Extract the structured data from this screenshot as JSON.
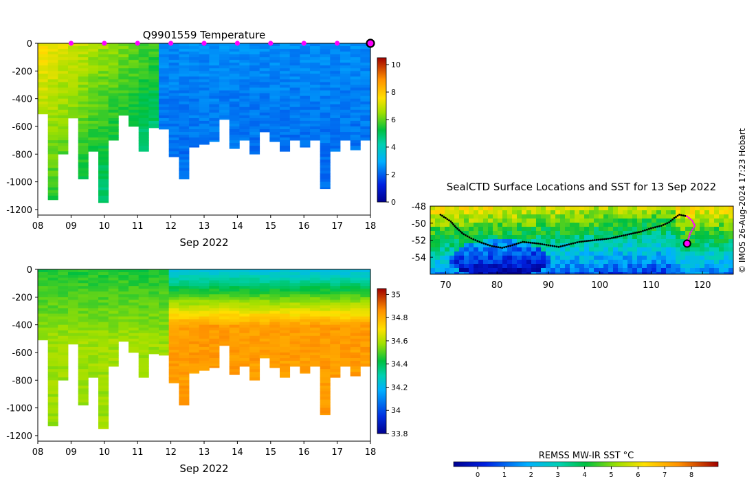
{
  "chart_data": [
    {
      "type": "heatmap",
      "title": "Q9901559  Temperature",
      "variable": "temperature",
      "x_ticks": [
        "08",
        "09",
        "10",
        "11",
        "12",
        "13",
        "14",
        "15",
        "16",
        "17",
        "18"
      ],
      "x_caption": "Sep 2022",
      "y_ticks": [
        "0",
        "-200",
        "-400",
        "-600",
        "-800",
        "-1000",
        "-1200"
      ],
      "ylim": [
        -1240,
        0
      ],
      "xlim": [
        "2022-09-08",
        "2022-09-18"
      ],
      "colorbar": {
        "ticks": [
          "0",
          "2",
          "4",
          "6",
          "8",
          "10"
        ],
        "range": [
          0,
          10.5
        ]
      },
      "profile_markers": [
        "2022-09-09",
        "2022-09-10",
        "2022-09-11",
        "2022-09-12",
        "2022-09-13",
        "2022-09-14",
        "2022-09-15",
        "2022-09-16",
        "2022-09-17"
      ],
      "latest_marker": "2022-09-18",
      "marker_color": "#ff00ff",
      "approximate_profile_depths_m": [
        -510,
        -1130,
        -800,
        -540,
        -980,
        -780,
        -1150,
        -700,
        -520,
        -600,
        -780,
        -610,
        -620,
        -820,
        -980,
        -750,
        -730,
        -710,
        -550,
        -760,
        -700,
        -800,
        -640,
        -710,
        -780,
        -700,
        -750,
        -700,
        -1050,
        -780,
        -700,
        -770,
        -700
      ]
    },
    {
      "type": "heatmap",
      "title": "",
      "variable": "salinity",
      "x_ticks": [
        "08",
        "09",
        "10",
        "11",
        "12",
        "13",
        "14",
        "15",
        "16",
        "17",
        "18"
      ],
      "x_caption": "Sep 2022",
      "y_ticks": [
        "0",
        "-200",
        "-400",
        "-600",
        "-800",
        "-1000",
        "-1200"
      ],
      "ylim": [
        -1240,
        0
      ],
      "xlim": [
        "2022-09-08",
        "2022-09-18"
      ],
      "colorbar": {
        "ticks": [
          "33.8",
          "34",
          "34.2",
          "34.4",
          "34.6",
          "34.8",
          "35"
        ],
        "range": [
          33.8,
          35.05
        ]
      }
    },
    {
      "type": "heatmap",
      "title": "SealCTD Surface Locations and SST for 13 Sep 2022",
      "variable": "sea surface temperature",
      "x_ticks": [
        "70",
        "80",
        "90",
        "100",
        "110",
        "120"
      ],
      "y_ticks": [
        "-48",
        "-50",
        "-52",
        "-54"
      ],
      "xlim": [
        67,
        126
      ],
      "ylim": [
        -56,
        -48
      ],
      "track": [
        [
          69,
          -49
        ],
        [
          70,
          -49.4
        ],
        [
          71,
          -49.8
        ],
        [
          72,
          -50.5
        ],
        [
          73.5,
          -51.3
        ],
        [
          75,
          -51.8
        ],
        [
          77,
          -52.3
        ],
        [
          79,
          -52.7
        ],
        [
          81,
          -52.9
        ],
        [
          83,
          -52.6
        ],
        [
          85,
          -52.2
        ],
        [
          88,
          -52.4
        ],
        [
          90,
          -52.6
        ],
        [
          92,
          -52.8
        ],
        [
          94,
          -52.5
        ],
        [
          96,
          -52.2
        ],
        [
          99,
          -52
        ],
        [
          102,
          -51.8
        ],
        [
          105,
          -51.4
        ],
        [
          108,
          -51
        ],
        [
          110,
          -50.6
        ],
        [
          112,
          -50.3
        ],
        [
          113.5,
          -49.9
        ],
        [
          114.5,
          -49.4
        ],
        [
          115.5,
          -49
        ],
        [
          117,
          -49.2
        ],
        [
          118,
          -49.7
        ],
        [
          118.5,
          -50.3
        ],
        [
          117.6,
          -51.2
        ],
        [
          117,
          -52.4
        ]
      ],
      "latest_position": [
        117,
        -52.4
      ],
      "colorbar": {
        "label": "REMSS MW-IR SST °C",
        "ticks": [
          "0",
          "1",
          "2",
          "3",
          "4",
          "5",
          "6",
          "7",
          "8"
        ],
        "range": [
          -0.9,
          9
        ]
      }
    }
  ],
  "credit": "© IMOS 26-Aug-2024 17:23 Hobart"
}
